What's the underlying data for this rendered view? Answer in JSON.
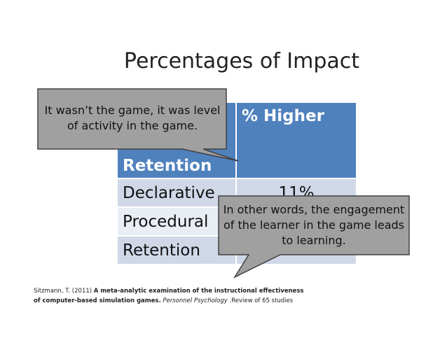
{
  "title": "Percentages of Impact",
  "table": {
    "header": {
      "label": "Retention",
      "value": "% Higher"
    },
    "rows": [
      {
        "label": "Declarative",
        "value": "11%"
      },
      {
        "label": "Procedural"
      },
      {
        "label": "Retention"
      }
    ]
  },
  "callouts": [
    "It wasn’t the game, it was level of activity in the game.",
    "In other words, the engagement of the learner in the game leads to learning."
  ],
  "citation": {
    "author": "Sitzmann, T. (2011)",
    "title_line1": "A meta-analytic examination of the instructional effectiveness",
    "title_line2": "of computer-based simulation games.",
    "journal": "Personnel Psychology",
    "note": ".Review of 65 studies"
  }
}
